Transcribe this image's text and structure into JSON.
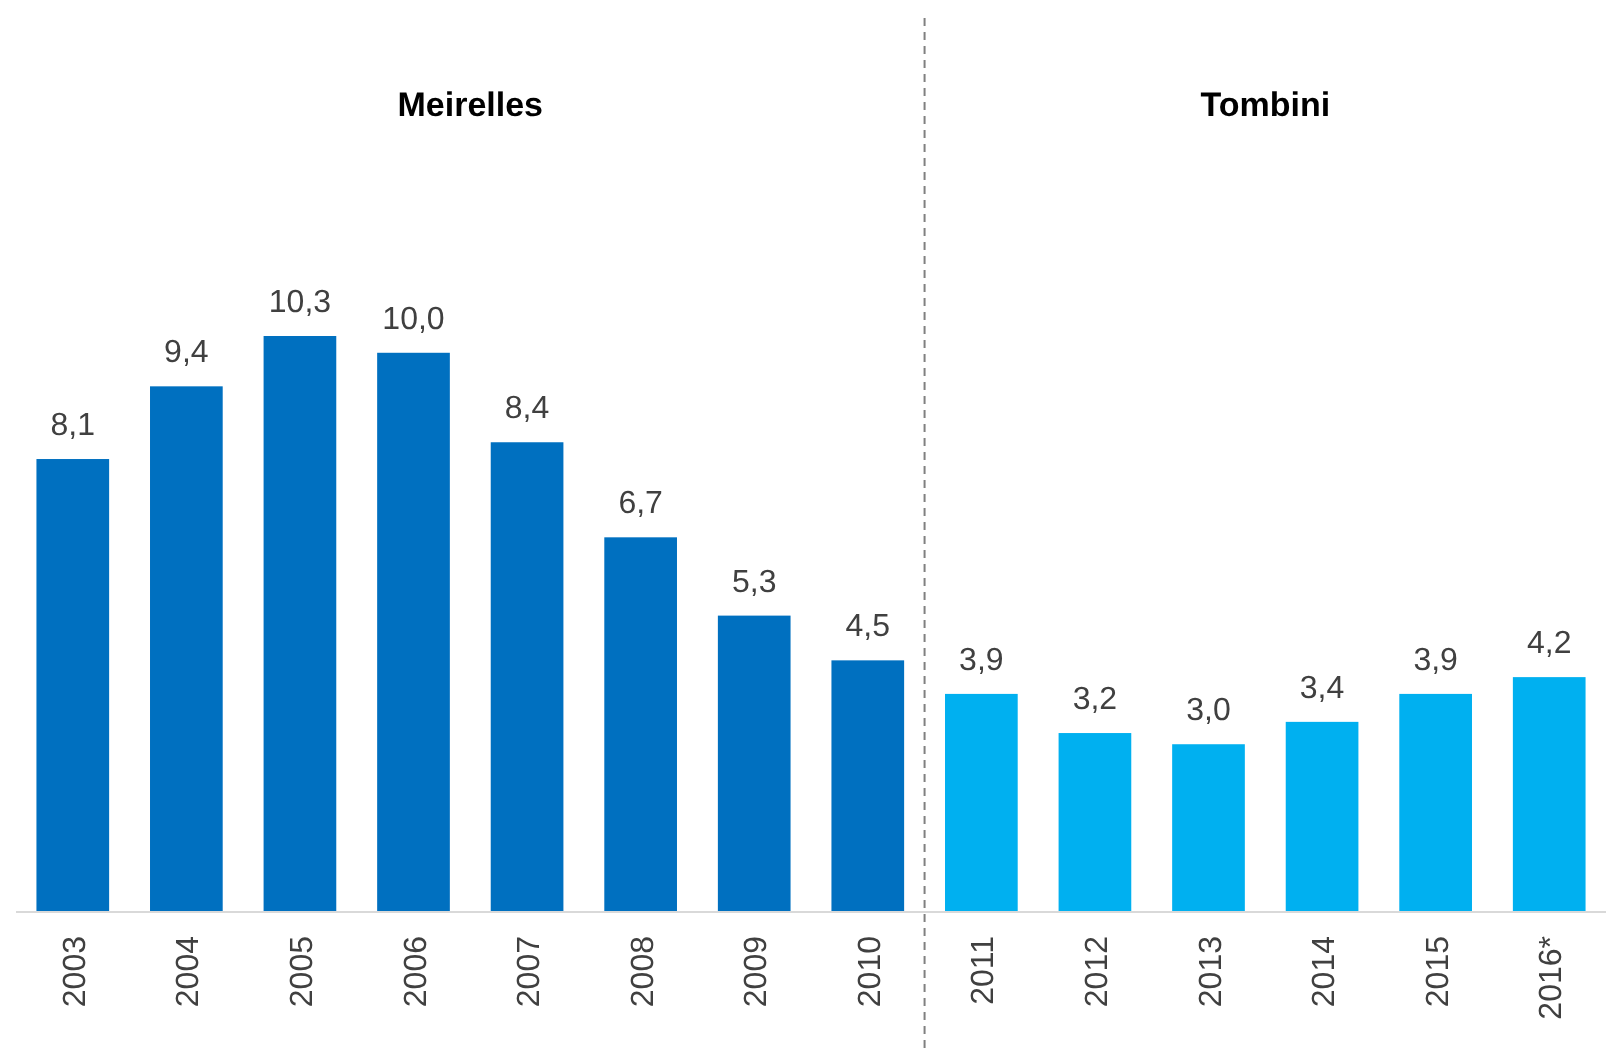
{
  "chart_data": {
    "type": "bar",
    "categories": [
      "2003",
      "2004",
      "2005",
      "2006",
      "2007",
      "2008",
      "2009",
      "2010",
      "2011",
      "2012",
      "2013",
      "2014",
      "2015",
      "2016*"
    ],
    "values": [
      8.1,
      9.4,
      10.3,
      10.0,
      8.4,
      6.7,
      5.3,
      4.5,
      3.9,
      3.2,
      3.0,
      3.4,
      3.9,
      4.2
    ],
    "value_labels": [
      "8,1",
      "9,4",
      "10,3",
      "10,0",
      "8,4",
      "6,7",
      "5,3",
      "4,5",
      "3,9",
      "3,2",
      "3,0",
      "3,4",
      "3,9",
      "4,2"
    ],
    "colors": [
      "#0070c0",
      "#0070c0",
      "#0070c0",
      "#0070c0",
      "#0070c0",
      "#0070c0",
      "#0070c0",
      "#0070c0",
      "#00b0f0",
      "#00b0f0",
      "#00b0f0",
      "#00b0f0",
      "#00b0f0",
      "#00b0f0"
    ],
    "annotations": [
      "Meirelles",
      "Tombini"
    ]
  }
}
